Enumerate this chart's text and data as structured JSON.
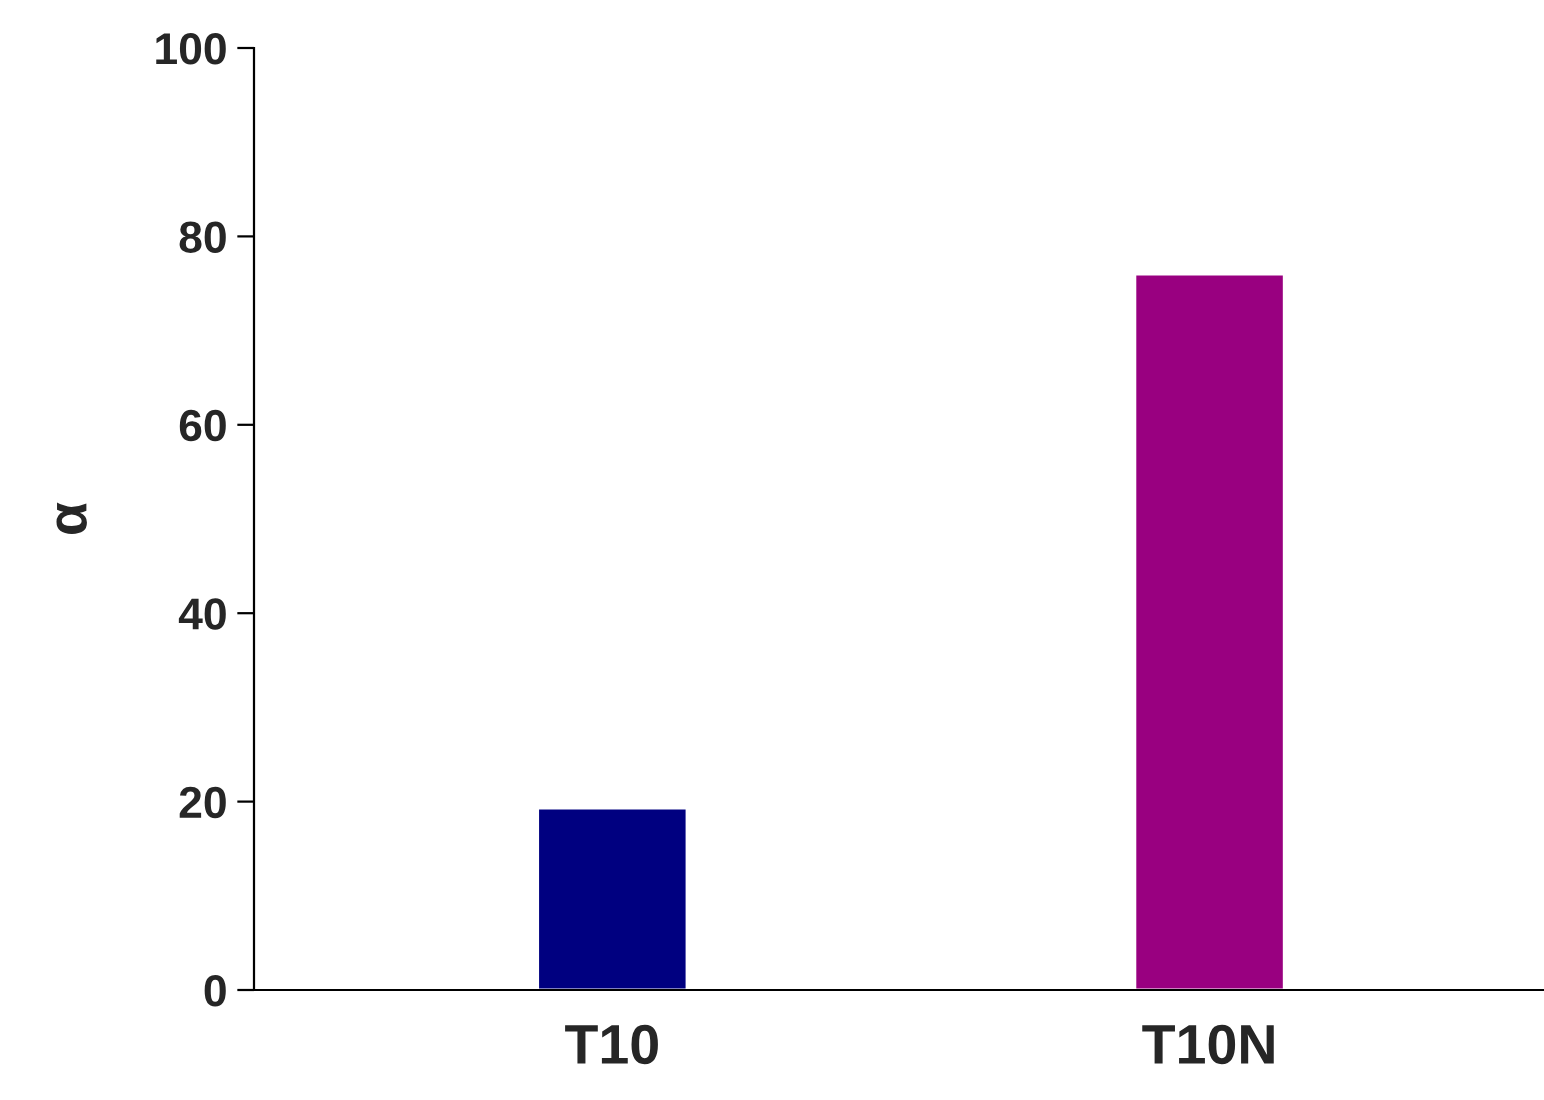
{
  "chart_data": {
    "type": "bar",
    "ylabel": "α",
    "categories": [
      "T10",
      "T10N"
    ],
    "values": [
      19.3,
      76.0
    ],
    "colors": [
      "#000080",
      "#990080"
    ],
    "ylim": [
      0,
      100
    ],
    "yticks": [
      0,
      20,
      40,
      60,
      80,
      100
    ],
    "grid": false,
    "legend": false
  }
}
